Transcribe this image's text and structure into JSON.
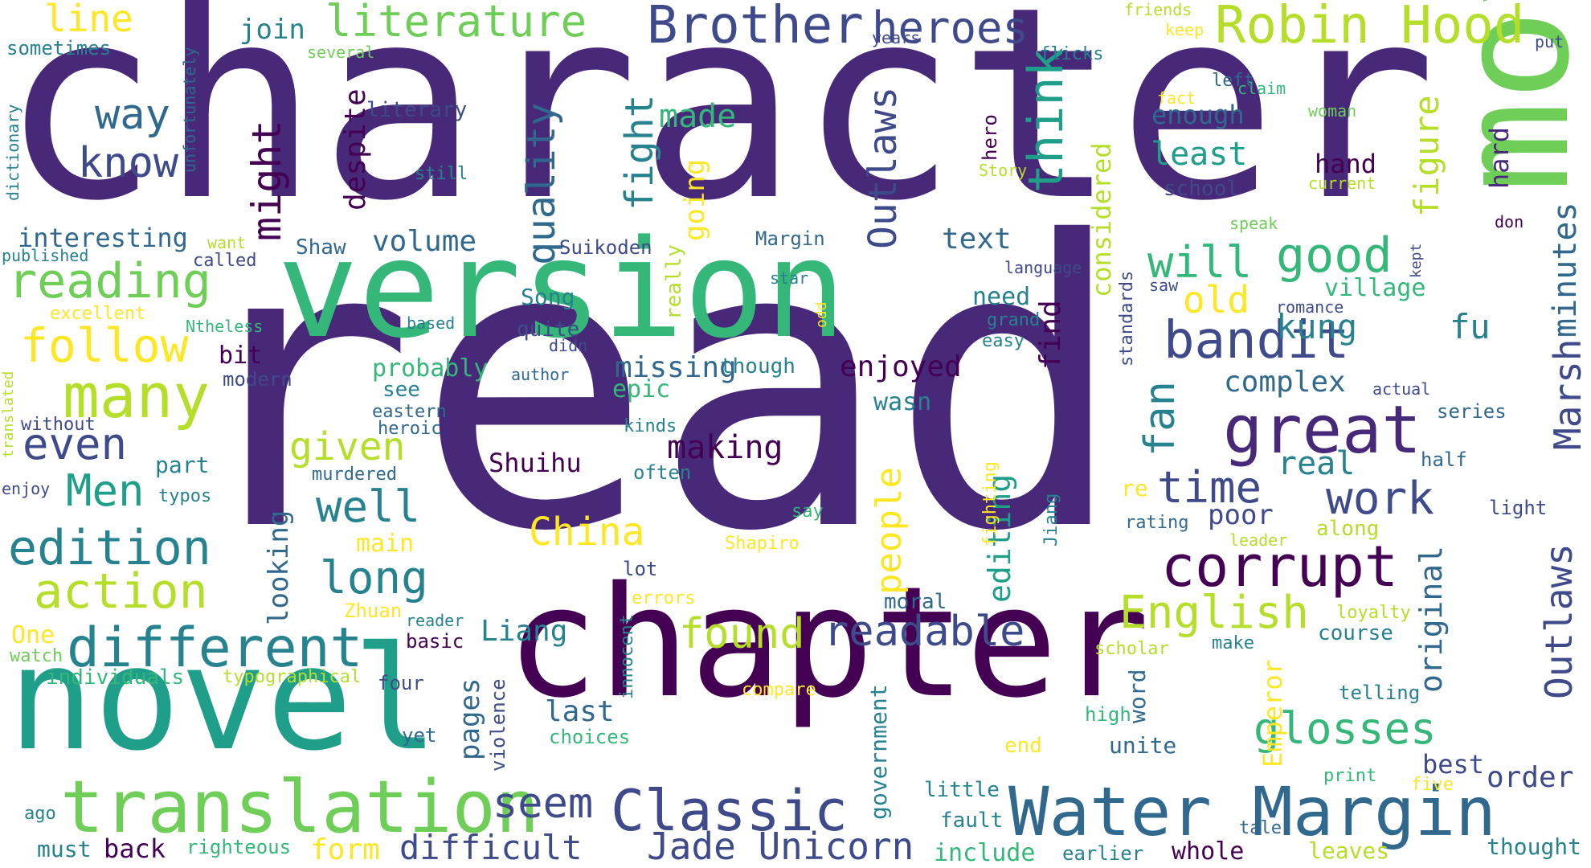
{
  "palette": {
    "dark_purple": "#440154",
    "indigo": "#482878",
    "purple_blue": "#3e4a89",
    "slate_blue": "#31688e",
    "teal_blue": "#26828e",
    "teal": "#1f9e89",
    "sea_green": "#35b779",
    "green": "#6ece58",
    "yellow_green": "#b5de2b",
    "yellow": "#fde725"
  },
  "words": [
    {
      "text": "character",
      "color": "#482878"
    },
    {
      "text": "read",
      "color": "#482878"
    },
    {
      "text": "chapter",
      "color": "#440154"
    },
    {
      "text": "version",
      "color": "#35b779"
    },
    {
      "text": "novel",
      "color": "#1f9e89"
    },
    {
      "text": "movie",
      "color": "#6ece58"
    },
    {
      "text": "translation",
      "color": "#6ece58"
    },
    {
      "text": "Water Margin",
      "color": "#31688e"
    },
    {
      "text": "Classic",
      "color": "#3e4a89"
    },
    {
      "text": "different",
      "color": "#26828e"
    },
    {
      "text": "corrupt",
      "color": "#440154"
    },
    {
      "text": "great",
      "color": "#482878"
    },
    {
      "text": "many",
      "color": "#b5de2b"
    },
    {
      "text": "Brother",
      "color": "#3e4a89"
    },
    {
      "text": "Robin Hood",
      "color": "#b5de2b"
    },
    {
      "text": "bandit",
      "color": "#3e4a89"
    },
    {
      "text": "edition",
      "color": "#26828e"
    },
    {
      "text": "action",
      "color": "#b5de2b"
    },
    {
      "text": "reading",
      "color": "#6ece58"
    },
    {
      "text": "follow",
      "color": "#fde725"
    },
    {
      "text": "literature",
      "color": "#6ece58"
    },
    {
      "text": "heroes",
      "color": "#3e4a89"
    },
    {
      "text": "even",
      "color": "#3e4a89"
    },
    {
      "text": "Men",
      "color": "#1f9e89"
    },
    {
      "text": "glosses",
      "color": "#35b779"
    },
    {
      "text": "Jade Unicorn",
      "color": "#3e4a89"
    },
    {
      "text": "work",
      "color": "#3e4a89"
    },
    {
      "text": "English",
      "color": "#b5de2b"
    },
    {
      "text": "readable",
      "color": "#3e4a89"
    },
    {
      "text": "found",
      "color": "#b5de2b"
    },
    {
      "text": "time",
      "color": "#3e4a89"
    },
    {
      "text": "good",
      "color": "#35b779"
    },
    {
      "text": "long",
      "color": "#26828e"
    },
    {
      "text": "well",
      "color": "#26828e"
    },
    {
      "text": "China",
      "color": "#fde725"
    },
    {
      "text": "seem",
      "color": "#3e4a89"
    },
    {
      "text": "difficult",
      "color": "#3e4a89"
    },
    {
      "text": "think",
      "color": "#1f9e89"
    },
    {
      "text": "know",
      "color": "#3e4a89"
    },
    {
      "text": "way",
      "color": "#31688e"
    },
    {
      "text": "line",
      "color": "#fde725"
    },
    {
      "text": "might",
      "color": "#440154"
    },
    {
      "text": "quality",
      "color": "#31688e"
    },
    {
      "text": "fight",
      "color": "#26828e"
    },
    {
      "text": "Outlaws",
      "color": "#3e4a89"
    },
    {
      "text": "Outlaws",
      "color": "#3e4a89"
    },
    {
      "text": "Marsh",
      "color": "#3e4a89"
    },
    {
      "text": "minutes",
      "color": "#31688e"
    },
    {
      "text": "figure",
      "color": "#b5de2b"
    },
    {
      "text": "fan",
      "color": "#26828e"
    },
    {
      "text": "people",
      "color": "#fde725"
    },
    {
      "text": "given",
      "color": "#b5de2b"
    },
    {
      "text": "making",
      "color": "#440154"
    },
    {
      "text": "enjoyed",
      "color": "#440154"
    },
    {
      "text": "missing",
      "color": "#31688e"
    },
    {
      "text": "kung",
      "color": "#26828e"
    },
    {
      "text": "fu",
      "color": "#26828e"
    },
    {
      "text": "old",
      "color": "#fde725"
    },
    {
      "text": "will",
      "color": "#35b779"
    },
    {
      "text": "least",
      "color": "#1f9e89"
    },
    {
      "text": "complex",
      "color": "#31688e"
    },
    {
      "text": "real",
      "color": "#26828e"
    },
    {
      "text": "editing",
      "color": "#1f9e89"
    },
    {
      "text": "original",
      "color": "#31688e"
    },
    {
      "text": "Emperor",
      "color": "#fde725"
    },
    {
      "text": "order",
      "color": "#3e4a89"
    },
    {
      "text": "best",
      "color": "#3e4a89"
    },
    {
      "text": "text",
      "color": "#31688e"
    },
    {
      "text": "volume",
      "color": "#31688e"
    },
    {
      "text": "probably",
      "color": "#35b779"
    },
    {
      "text": "considered",
      "color": "#b5de2b"
    },
    {
      "text": "despite",
      "color": "#440154"
    },
    {
      "text": "made",
      "color": "#35b779"
    },
    {
      "text": "going",
      "color": "#fde725"
    },
    {
      "text": "join",
      "color": "#26828e"
    },
    {
      "text": "interesting",
      "color": "#31688e"
    },
    {
      "text": "Shaw",
      "color": "#31688e"
    },
    {
      "text": "bit",
      "color": "#440154"
    },
    {
      "text": "part",
      "color": "#26828e"
    },
    {
      "text": "epic",
      "color": "#35b779"
    },
    {
      "text": "looking",
      "color": "#31688e"
    },
    {
      "text": "pages",
      "color": "#31688e"
    },
    {
      "text": "last",
      "color": "#31688e"
    },
    {
      "text": "Liang",
      "color": "#26828e"
    },
    {
      "text": "Shuihu",
      "color": "#440154"
    },
    {
      "text": "Song",
      "color": "#26828e"
    },
    {
      "text": "quite",
      "color": "#3e4a89"
    },
    {
      "text": "need",
      "color": "#26828e"
    },
    {
      "text": "find",
      "color": "#440154"
    },
    {
      "text": "wasn",
      "color": "#26828e"
    },
    {
      "text": "poor",
      "color": "#3e4a89"
    },
    {
      "text": "village",
      "color": "#35b779"
    },
    {
      "text": "hand",
      "color": "#440154"
    },
    {
      "text": "hard",
      "color": "#482878"
    },
    {
      "text": "school",
      "color": "#3e4a89"
    },
    {
      "text": "enough",
      "color": "#31688e"
    },
    {
      "text": "form",
      "color": "#fde725"
    },
    {
      "text": "back",
      "color": "#440154"
    },
    {
      "text": "must",
      "color": "#26828e"
    },
    {
      "text": "main",
      "color": "#fde725"
    },
    {
      "text": "One",
      "color": "#fde725"
    },
    {
      "text": "individuals",
      "color": "#35b779"
    },
    {
      "text": "include",
      "color": "#35b779"
    },
    {
      "text": "whole",
      "color": "#440154"
    },
    {
      "text": "unite",
      "color": "#31688e"
    },
    {
      "text": "government",
      "color": "#26828e"
    },
    {
      "text": "violence",
      "color": "#3e4a89"
    },
    {
      "text": "word",
      "color": "#31688e"
    },
    {
      "text": "moral",
      "color": "#31688e"
    },
    {
      "text": "course",
      "color": "#26828e"
    },
    {
      "text": "along",
      "color": "#b5de2b"
    },
    {
      "text": "half",
      "color": "#31688e"
    },
    {
      "text": "series",
      "color": "#31688e"
    },
    {
      "text": "light",
      "color": "#3e4a89"
    },
    {
      "text": "thought",
      "color": "#26828e"
    },
    {
      "text": "leaves",
      "color": "#b5de2b"
    },
    {
      "text": "five",
      "color": "#fde725"
    },
    {
      "text": "print",
      "color": "#35b779"
    },
    {
      "text": "telling",
      "color": "#26828e"
    },
    {
      "text": "make",
      "color": "#26828e"
    },
    {
      "text": "loyalty",
      "color": "#b5de2b"
    },
    {
      "text": "scholar",
      "color": "#b5de2b"
    },
    {
      "text": "tale",
      "color": "#31688e"
    },
    {
      "text": "earlier",
      "color": "#26828e"
    },
    {
      "text": "fault",
      "color": "#26828e"
    },
    {
      "text": "little",
      "color": "#26828e"
    },
    {
      "text": "end",
      "color": "#fde725"
    },
    {
      "text": "high",
      "color": "#35b779"
    },
    {
      "text": "compare",
      "color": "#fde725"
    },
    {
      "text": "choices",
      "color": "#35b779"
    },
    {
      "text": "yet",
      "color": "#31688e"
    },
    {
      "text": "four",
      "color": "#3e4a89"
    },
    {
      "text": "typographical",
      "color": "#b5de2b"
    },
    {
      "text": "righteous",
      "color": "#35b779"
    },
    {
      "text": "ago",
      "color": "#26828e"
    },
    {
      "text": "watch",
      "color": "#6ece58"
    },
    {
      "text": "basic",
      "color": "#440154"
    },
    {
      "text": "reader",
      "color": "#26828e"
    },
    {
      "text": "Zhuan",
      "color": "#fde725"
    },
    {
      "text": "lot",
      "color": "#3e4a89"
    },
    {
      "text": "errors",
      "color": "#fde725"
    },
    {
      "text": "innocent",
      "color": "#26828e"
    },
    {
      "text": "Shapiro",
      "color": "#fde725"
    },
    {
      "text": "fighting",
      "color": "#fde725"
    },
    {
      "text": "Jiang",
      "color": "#26828e"
    },
    {
      "text": "say",
      "color": "#35b779"
    },
    {
      "text": "re",
      "color": "#fde725"
    },
    {
      "text": "rating",
      "color": "#31688e"
    },
    {
      "text": "leader",
      "color": "#b5de2b"
    },
    {
      "text": "often",
      "color": "#26828e"
    },
    {
      "text": "kinds",
      "color": "#26828e"
    },
    {
      "text": "heroic",
      "color": "#31688e"
    },
    {
      "text": "eastern",
      "color": "#31688e"
    },
    {
      "text": "murdered",
      "color": "#31688e"
    },
    {
      "text": "typos",
      "color": "#26828e"
    },
    {
      "text": "enjoy",
      "color": "#3e4a89"
    },
    {
      "text": "without",
      "color": "#3e4a89"
    },
    {
      "text": "translated",
      "color": "#b5de2b"
    },
    {
      "text": "modern",
      "color": "#3e4a89"
    },
    {
      "text": "see",
      "color": "#26828e"
    },
    {
      "text": "author",
      "color": "#31688e"
    },
    {
      "text": "though",
      "color": "#26828e"
    },
    {
      "text": "didn",
      "color": "#3e4a89"
    },
    {
      "text": "based",
      "color": "#26828e"
    },
    {
      "text": "Ntheless",
      "color": "#35b779"
    },
    {
      "text": "excellent",
      "color": "#fde725"
    },
    {
      "text": "published",
      "color": "#26828e"
    },
    {
      "text": "called",
      "color": "#3e4a89"
    },
    {
      "text": "want",
      "color": "#b5de2b"
    },
    {
      "text": "Suikoden",
      "color": "#3e4a89"
    },
    {
      "text": "Margin",
      "color": "#31688e"
    },
    {
      "text": "star",
      "color": "#26828e"
    },
    {
      "text": "odd",
      "color": "#fde725"
    },
    {
      "text": "really",
      "color": "#b5de2b"
    },
    {
      "text": "still",
      "color": "#26828e"
    },
    {
      "text": "literary",
      "color": "#3e4a89"
    },
    {
      "text": "several",
      "color": "#6ece58"
    },
    {
      "text": "sometimes",
      "color": "#26828e"
    },
    {
      "text": "unfortunately",
      "color": "#31688e"
    },
    {
      "text": "dictionary",
      "color": "#26828e"
    },
    {
      "text": "flicks",
      "color": "#26828e"
    },
    {
      "text": "years",
      "color": "#3e4a89"
    },
    {
      "text": "friends",
      "color": "#b5de2b"
    },
    {
      "text": "keep",
      "color": "#fde725"
    },
    {
      "text": "put",
      "color": "#3e4a89"
    },
    {
      "text": "claim",
      "color": "#35b779"
    },
    {
      "text": "left",
      "color": "#31688e"
    },
    {
      "text": "fact",
      "color": "#fde725"
    },
    {
      "text": "woman",
      "color": "#6ece58"
    },
    {
      "text": "current",
      "color": "#b5de2b"
    },
    {
      "text": "Story",
      "color": "#b5de2b"
    },
    {
      "text": "hero",
      "color": "#440154"
    },
    {
      "text": "speak",
      "color": "#6ece58"
    },
    {
      "text": "don",
      "color": "#440154"
    },
    {
      "text": "language",
      "color": "#3e4a89"
    },
    {
      "text": "grand",
      "color": "#26828e"
    },
    {
      "text": "easy",
      "color": "#26828e"
    },
    {
      "text": "standards",
      "color": "#3e4a89"
    },
    {
      "text": "saw",
      "color": "#3e4a89"
    },
    {
      "text": "kept",
      "color": "#3e4a89"
    },
    {
      "text": "romance",
      "color": "#3e4a89"
    },
    {
      "text": "actual",
      "color": "#3e4a89"
    }
  ]
}
